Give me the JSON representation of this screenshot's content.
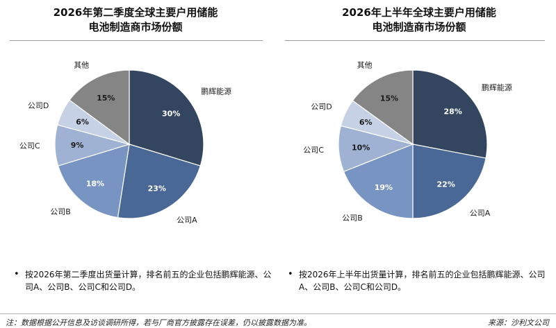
{
  "palette": {
    "slice_colors": [
      "#34465f",
      "#4a6895",
      "#7794c3",
      "#9fb2d3",
      "#c6d1e5",
      "#858585"
    ],
    "pct_text_light": "#ffffff",
    "pct_text_dark": "#1a1a1a"
  },
  "chart_data": [
    {
      "type": "pie",
      "title_line1": "2026年第二季度全球主要户用储能",
      "title_line2": "电池制造商市场份额",
      "categories": [
        "鹏辉能源",
        "公司A",
        "公司B",
        "公司C",
        "公司D",
        "其他"
      ],
      "values": [
        30,
        23,
        18,
        9,
        6,
        15
      ],
      "value_labels": [
        "30%",
        "23%",
        "18%",
        "9%",
        "6%",
        "15%"
      ],
      "bullet": "按2026年第二季度出货量计算，排名前五的企业包括鹏辉能源、公司A、公司B、公司C和公司D。"
    },
    {
      "type": "pie",
      "title_line1": "2026年上半年全球主要户用储能",
      "title_line2": "电池制造商市场份额",
      "categories": [
        "鹏辉能源",
        "公司A",
        "公司B",
        "公司C",
        "公司D",
        "其他"
      ],
      "values": [
        28,
        22,
        19,
        10,
        6,
        15
      ],
      "value_labels": [
        "28%",
        "22%",
        "19%",
        "10%",
        "6%",
        "15%"
      ],
      "bullet": "按2026年上半年出货量计算，排名前五的企业包括鹏辉能源、公司A、公司B、公司C和公司D。"
    }
  ],
  "footer": {
    "note": "注：数据根据公开信息及访谈调研所得，若与厂商官方披露存在误差，仍以披露数据为准。",
    "source": "来源：沙利文公司"
  }
}
